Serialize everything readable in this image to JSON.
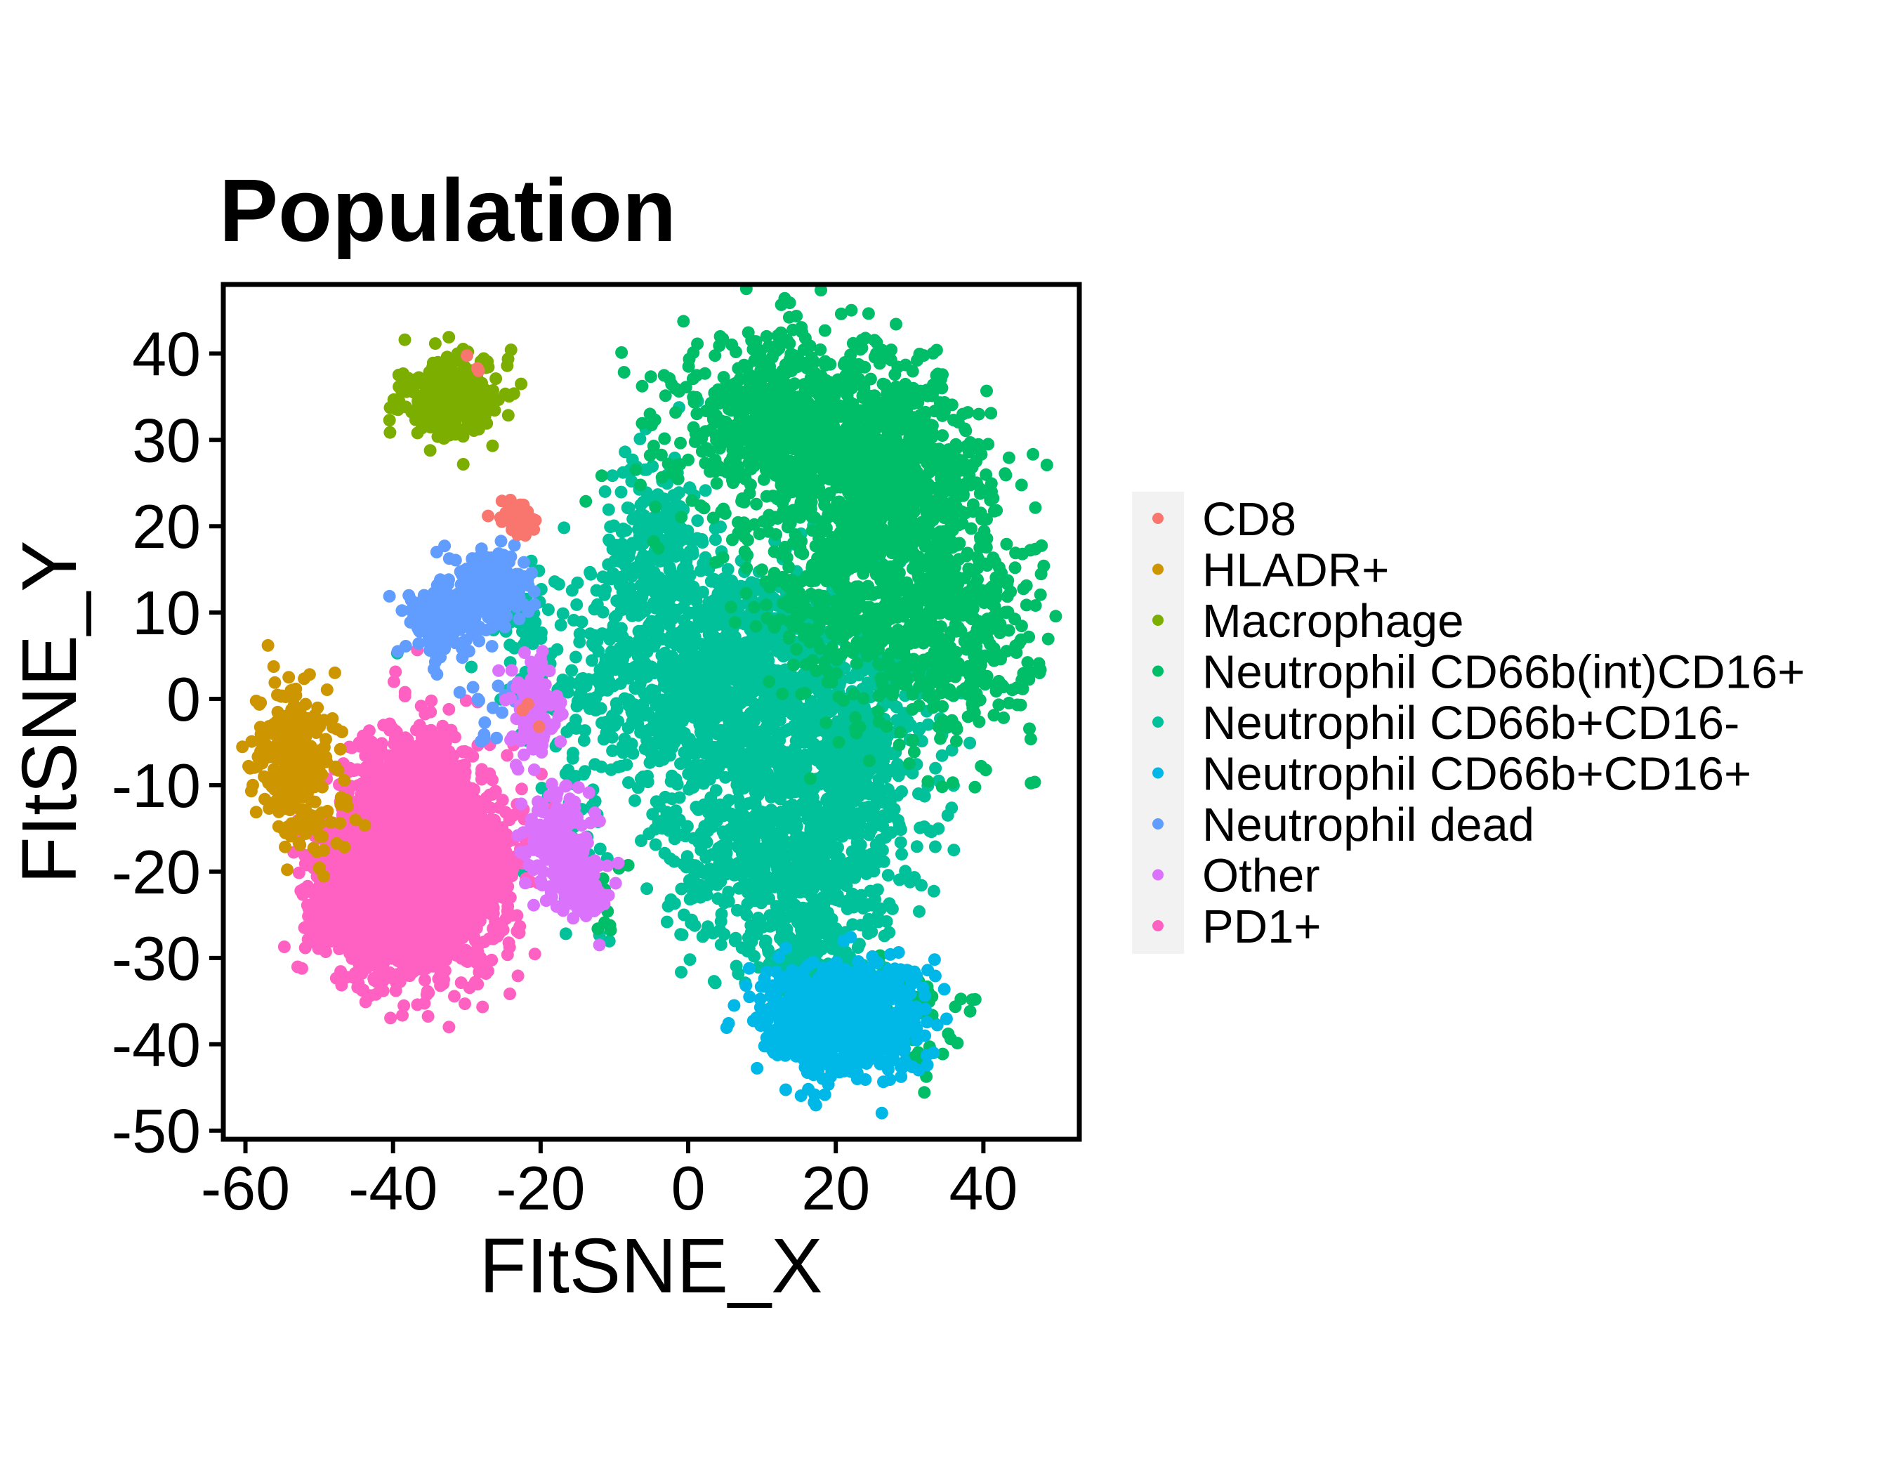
{
  "chart_data": {
    "type": "scatter",
    "title": "Population",
    "xlabel": "FItSNE_X",
    "ylabel": "FItSNE_Y",
    "xlim": [
      -63,
      53
    ],
    "ylim": [
      -51,
      48
    ],
    "x_ticks": [
      -60,
      -40,
      -20,
      0,
      20,
      40
    ],
    "x_tick_labels": [
      "-60",
      "-40",
      "-20",
      "0",
      "20",
      "40"
    ],
    "y_ticks": [
      -50,
      -40,
      -30,
      -20,
      -10,
      0,
      10,
      20,
      30,
      40
    ],
    "y_tick_labels": [
      "-50",
      "-40",
      "-30",
      "-20",
      "-10",
      "0",
      "10",
      "20",
      "30",
      "40"
    ],
    "grid": false,
    "legend_position": "right",
    "series": [
      {
        "name": "CD8",
        "color": "#F8766D",
        "clusters": [
          {
            "cx": -24,
            "cy": 21,
            "sx": 1.3,
            "sy": 1.0,
            "n": 40
          },
          {
            "cx": -29,
            "cy": 39,
            "sx": 1.0,
            "sy": 0.8,
            "n": 3
          },
          {
            "cx": -22,
            "cy": -1,
            "sx": 1.0,
            "sy": 1.0,
            "n": 3
          }
        ]
      },
      {
        "name": "HLADR+",
        "color": "#CD9600",
        "clusters": [
          {
            "cx": -53.5,
            "cy": -7,
            "sx": 2.6,
            "sy": 4.5,
            "n": 300
          },
          {
            "cx": -48,
            "cy": -15,
            "sx": 2.5,
            "sy": 2.0,
            "n": 20
          }
        ]
      },
      {
        "name": "Macrophage",
        "color": "#7CAE00",
        "clusters": [
          {
            "cx": -32,
            "cy": 35,
            "sx": 3.3,
            "sy": 2.3,
            "n": 300
          }
        ]
      },
      {
        "name": "Neutrophil CD66b(int)CD16+",
        "color": "#00BE67",
        "clusters": [
          {
            "cx": 15,
            "cy": 31,
            "sx": 8.0,
            "sy": 5.5,
            "n": 900
          },
          {
            "cx": 29,
            "cy": 25,
            "sx": 6.0,
            "sy": 6.0,
            "n": 600
          },
          {
            "cx": 35,
            "cy": 8,
            "sx": 6.0,
            "sy": 6.5,
            "n": 500
          },
          {
            "cx": 20,
            "cy": 12,
            "sx": 5.0,
            "sy": 6.0,
            "n": 300
          },
          {
            "cx": 30,
            "cy": -37,
            "sx": 3.0,
            "sy": 3.0,
            "n": 60
          },
          {
            "cx": -12,
            "cy": -22,
            "sx": 2.0,
            "sy": 3.0,
            "n": 15
          }
        ]
      },
      {
        "name": "Neutrophil CD66b+CD16-",
        "color": "#00C19A",
        "clusters": [
          {
            "cx": 5,
            "cy": 2,
            "sx": 11.0,
            "sy": 7.0,
            "n": 1300
          },
          {
            "cx": 13,
            "cy": -17,
            "sx": 8.0,
            "sy": 6.0,
            "n": 800
          },
          {
            "cx": -4,
            "cy": 17,
            "sx": 4.0,
            "sy": 6.0,
            "n": 250
          },
          {
            "cx": 23,
            "cy": -6,
            "sx": 5.0,
            "sy": 5.0,
            "n": 300
          },
          {
            "cx": 17,
            "cy": -29,
            "sx": 4.0,
            "sy": 3.0,
            "n": 150
          },
          {
            "cx": -22,
            "cy": 8,
            "sx": 2.0,
            "sy": 3.0,
            "n": 40
          },
          {
            "cx": -16,
            "cy": -16,
            "sx": 2.5,
            "sy": 4.0,
            "n": 40
          }
        ]
      },
      {
        "name": "Neutrophil CD66b+CD16+",
        "color": "#00B8E7",
        "clusters": [
          {
            "cx": 21,
            "cy": -37,
            "sx": 5.3,
            "sy": 3.2,
            "n": 900
          }
        ]
      },
      {
        "name": "Neutrophil dead",
        "color": "#619CFF",
        "clusters": [
          {
            "cx": -27,
            "cy": 13,
            "sx": 2.5,
            "sy": 2.0,
            "n": 250
          },
          {
            "cx": -33,
            "cy": 9,
            "sx": 2.5,
            "sy": 2.0,
            "n": 200
          },
          {
            "cx": -26,
            "cy": -1,
            "sx": 2.0,
            "sy": 2.0,
            "n": 15
          }
        ]
      },
      {
        "name": "Other",
        "color": "#DB72FB",
        "clusters": [
          {
            "cx": -17,
            "cy": -17,
            "sx": 2.5,
            "sy": 3.0,
            "n": 200
          },
          {
            "cx": -21,
            "cy": -1,
            "sx": 1.5,
            "sy": 3.0,
            "n": 100
          },
          {
            "cx": -14,
            "cy": -23,
            "sx": 1.5,
            "sy": 1.5,
            "n": 60
          }
        ]
      },
      {
        "name": "PD1+",
        "color": "#FF61C3",
        "clusters": [
          {
            "cx": -35,
            "cy": -17,
            "sx": 4.0,
            "sy": 6.0,
            "n": 900
          },
          {
            "cx": -40,
            "cy": -24,
            "sx": 4.0,
            "sy": 4.5,
            "n": 800
          },
          {
            "cx": -31,
            "cy": -21,
            "sx": 4.0,
            "sy": 5.0,
            "n": 500
          },
          {
            "cx": -46,
            "cy": -21,
            "sx": 3.0,
            "sy": 4.0,
            "n": 400
          },
          {
            "cx": -38,
            "cy": -10,
            "sx": 4.0,
            "sy": 3.0,
            "n": 400
          }
        ]
      }
    ]
  }
}
